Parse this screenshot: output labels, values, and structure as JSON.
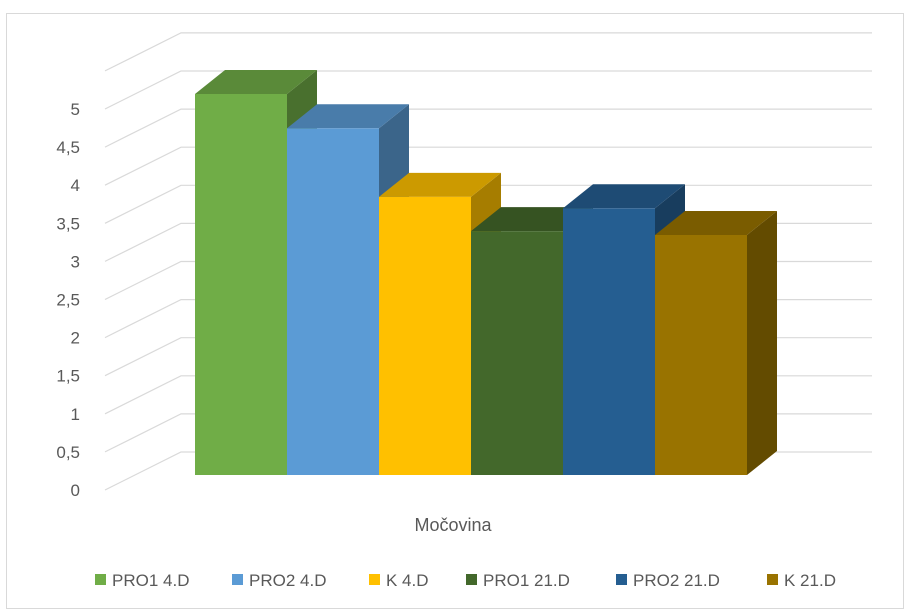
{
  "chart_data": {
    "type": "bar",
    "title": "",
    "xlabel": "",
    "ylabel": "",
    "categories": [
      "Močovina"
    ],
    "ylim": [
      0,
      5
    ],
    "yticks": [
      "0",
      "0,5",
      "1",
      "1,5",
      "2",
      "2,5",
      "3",
      "3,5",
      "4",
      "4,5",
      "5"
    ],
    "grid": true,
    "legend_position": "bottom",
    "three_d": true,
    "series": [
      {
        "name": "PRO1 4.D",
        "values": [
          5.0
        ],
        "color": "#70ad47"
      },
      {
        "name": "PRO2 4.D",
        "values": [
          4.55
        ],
        "color": "#5b9bd5"
      },
      {
        "name": "K 4.D",
        "values": [
          3.65
        ],
        "color": "#ffc000"
      },
      {
        "name": "PRO1 21.D",
        "values": [
          3.2
        ],
        "color": "#43682b"
      },
      {
        "name": "PRO2 21.D",
        "values": [
          3.5
        ],
        "color": "#255e91"
      },
      {
        "name": "K 21.D",
        "values": [
          3.15
        ],
        "color": "#997300"
      }
    ]
  }
}
